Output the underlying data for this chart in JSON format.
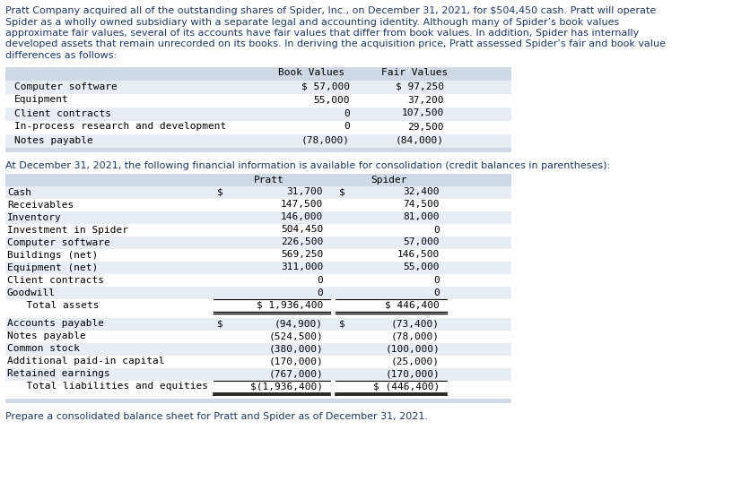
{
  "intro_text_lines": [
    "Pratt Company acquired all of the outstanding shares of Spider, Inc., on December 31, 2021, for $504,450 cash. Pratt will operate",
    "Spider as a wholly owned subsidiary with a separate legal and accounting identity. Although many of Spider’s book values",
    "approximate fair values, several of its accounts have fair values that differ from book values. In addition, Spider has internally",
    "developed assets that remain unrecorded on its books. In deriving the acquisition price, Pratt assessed Spider’s fair and book value",
    "differences as follows:"
  ],
  "table1_rows": [
    [
      "Computer software",
      "$ 57,000",
      "$ 97,250"
    ],
    [
      "Equipment",
      "55,000",
      "37,200"
    ],
    [
      "Client contracts",
      "0",
      "107,500"
    ],
    [
      "In-process research and development",
      "0",
      "29,500"
    ],
    [
      "Notes payable",
      "(78,000)",
      "(84,000)"
    ]
  ],
  "middle_text": "At December 31, 2021, the following financial information is available for consolidation (credit balances in parentheses):",
  "table2_assets": [
    [
      "Cash",
      "$",
      "31,700",
      "$",
      "32,400"
    ],
    [
      "Receivables",
      "",
      "147,500",
      "",
      "74,500"
    ],
    [
      "Inventory",
      "",
      "146,000",
      "",
      "81,000"
    ],
    [
      "Investment in Spider",
      "",
      "504,450",
      "",
      "0"
    ],
    [
      "Computer software",
      "",
      "226,500",
      "",
      "57,000"
    ],
    [
      "Buildings (net)",
      "",
      "569,250",
      "",
      "146,500"
    ],
    [
      "Equipment (net)",
      "",
      "311,000",
      "",
      "55,000"
    ],
    [
      "Client contracts",
      "",
      "0",
      "",
      "0"
    ],
    [
      "Goodwill",
      "",
      "0",
      "",
      "0"
    ]
  ],
  "table2_total_assets_pratt": "$ 1,936,400",
  "table2_total_assets_spider": "$ 446,400",
  "table2_liabilities": [
    [
      "Accounts payable",
      "$",
      "(94,900)",
      "$",
      "(73,400)"
    ],
    [
      "Notes payable",
      "",
      "(524,500)",
      "",
      "(78,000)"
    ],
    [
      "Common stock",
      "",
      "(380,000)",
      "",
      "(100,000)"
    ],
    [
      "Additional paid-in capital",
      "",
      "(170,000)",
      "",
      "(25,000)"
    ],
    [
      "Retained earnings",
      "",
      "(767,000)",
      "",
      "(170,000)"
    ]
  ],
  "table2_total_liab_pratt": "$(1,936,400)",
  "table2_total_liab_spider": "$ (446,400)",
  "footer_text": "Prepare a consolidated balance sheet for Pratt and Spider as of December 31, 2021.",
  "bg_color": "#ffffff",
  "table_header_bg": "#d0d8e4",
  "table_row_even_bg": "#e8edf4",
  "table_row_odd_bg": "#ffffff",
  "intro_color": "#1f3864",
  "middle_color": "#1f3864",
  "table_text_color": "#000000",
  "footer_color": "#1f3864",
  "font_size_intro": 8.0,
  "font_size_table": 8.0,
  "line_color": "#000000"
}
